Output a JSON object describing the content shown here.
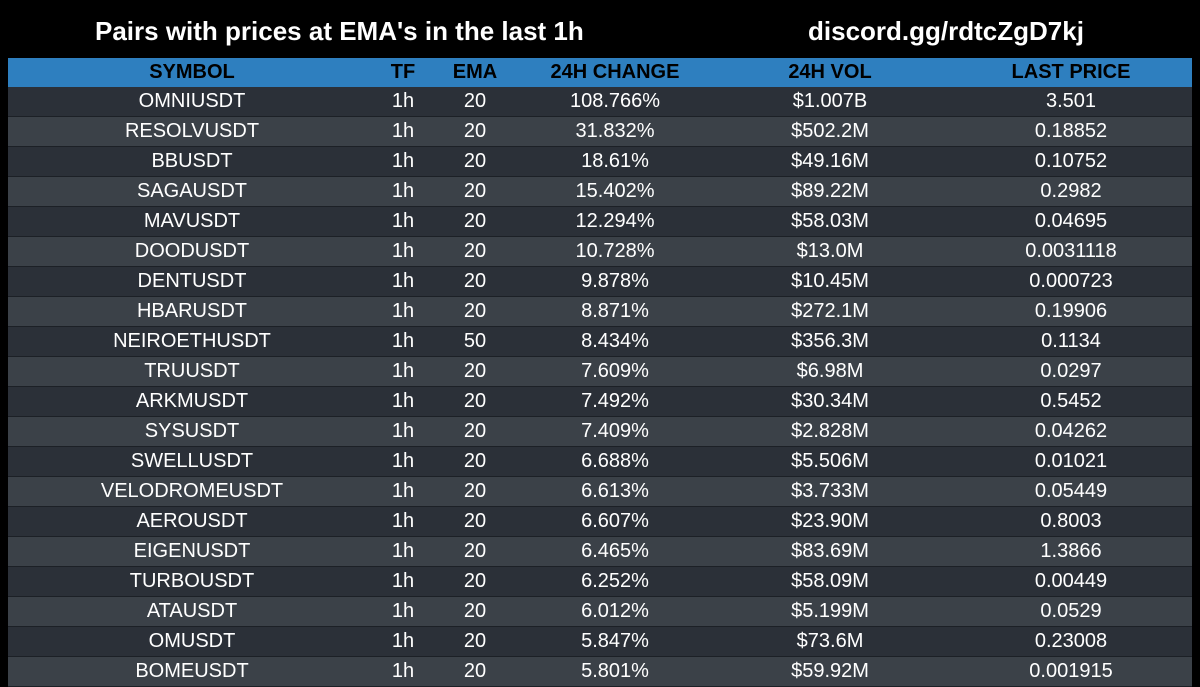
{
  "header": {
    "title": "Pairs with prices at EMA's in the last 1h",
    "link": "discord.gg/rdtcZgD7kj"
  },
  "colors": {
    "background": "#000000",
    "header_bar": "#2e7fbf",
    "row_dark": "#2b3038",
    "row_light": "#3b4148",
    "text": "#ffffff",
    "header_text": "#000000"
  },
  "table": {
    "columns": [
      "SYMBOL",
      "TF",
      "EMA",
      "24H CHANGE",
      "24H VOL",
      "LAST PRICE"
    ],
    "rows": [
      [
        "OMNIUSDT",
        "1h",
        "20",
        "108.766%",
        "$1.007B",
        "3.501"
      ],
      [
        "RESOLVUSDT",
        "1h",
        "20",
        "31.832%",
        "$502.2M",
        "0.18852"
      ],
      [
        "BBUSDT",
        "1h",
        "20",
        "18.61%",
        "$49.16M",
        "0.10752"
      ],
      [
        "SAGAUSDT",
        "1h",
        "20",
        "15.402%",
        "$89.22M",
        "0.2982"
      ],
      [
        "MAVUSDT",
        "1h",
        "20",
        "12.294%",
        "$58.03M",
        "0.04695"
      ],
      [
        "DOODUSDT",
        "1h",
        "20",
        "10.728%",
        "$13.0M",
        "0.0031118"
      ],
      [
        "DENTUSDT",
        "1h",
        "20",
        "9.878%",
        "$10.45M",
        "0.000723"
      ],
      [
        "HBARUSDT",
        "1h",
        "20",
        "8.871%",
        "$272.1M",
        "0.19906"
      ],
      [
        "NEIROETHUSDT",
        "1h",
        "50",
        "8.434%",
        "$356.3M",
        "0.1134"
      ],
      [
        "TRUUSDT",
        "1h",
        "20",
        "7.609%",
        "$6.98M",
        "0.0297"
      ],
      [
        "ARKMUSDT",
        "1h",
        "20",
        "7.492%",
        "$30.34M",
        "0.5452"
      ],
      [
        "SYSUSDT",
        "1h",
        "20",
        "7.409%",
        "$2.828M",
        "0.04262"
      ],
      [
        "SWELLUSDT",
        "1h",
        "20",
        "6.688%",
        "$5.506M",
        "0.01021"
      ],
      [
        "VELODROMEUSDT",
        "1h",
        "20",
        "6.613%",
        "$3.733M",
        "0.05449"
      ],
      [
        "AEROUSDT",
        "1h",
        "20",
        "6.607%",
        "$23.90M",
        "0.8003"
      ],
      [
        "EIGENUSDT",
        "1h",
        "20",
        "6.465%",
        "$83.69M",
        "1.3866"
      ],
      [
        "TURBOUSDT",
        "1h",
        "20",
        "6.252%",
        "$58.09M",
        "0.00449"
      ],
      [
        "ATAUSDT",
        "1h",
        "20",
        "6.012%",
        "$5.199M",
        "0.0529"
      ],
      [
        "OMUSDT",
        "1h",
        "20",
        "5.847%",
        "$73.6M",
        "0.23008"
      ],
      [
        "BOMEUSDT",
        "1h",
        "20",
        "5.801%",
        "$59.92M",
        "0.001915"
      ]
    ]
  }
}
